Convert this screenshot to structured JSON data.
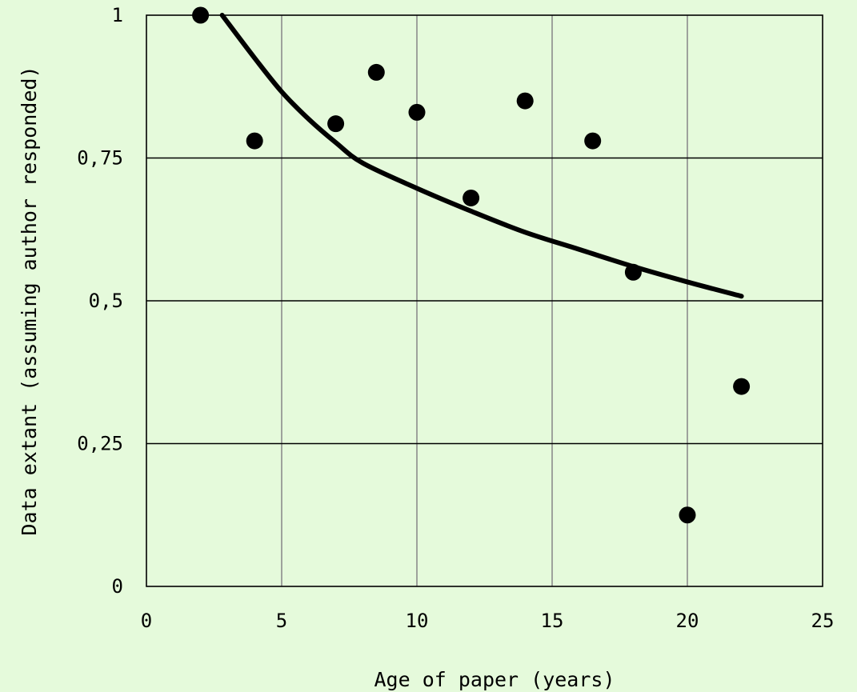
{
  "chart_data": {
    "type": "scatter",
    "title": "",
    "xlabel": "Age of paper (years)",
    "ylabel": "Data extant (assuming author responded)",
    "xlim": [
      0,
      25
    ],
    "ylim": [
      0,
      1
    ],
    "x_ticks": [
      0,
      5,
      10,
      15,
      20,
      25
    ],
    "x_tick_labels": [
      "0",
      "5",
      "10",
      "15",
      "20",
      "25"
    ],
    "y_ticks": [
      0,
      0.25,
      0.5,
      0.75,
      1
    ],
    "y_tick_labels": [
      "0",
      "0,25",
      "0,5",
      "0,75",
      "1"
    ],
    "grid": true,
    "legend": "none",
    "series": [
      {
        "points": [
          {
            "x": 2,
            "y": 1.0
          },
          {
            "x": 4,
            "y": 0.78
          },
          {
            "x": 7,
            "y": 0.81
          },
          {
            "x": 8.5,
            "y": 0.9
          },
          {
            "x": 10,
            "y": 0.83
          },
          {
            "x": 12,
            "y": 0.68
          },
          {
            "x": 14,
            "y": 0.85
          },
          {
            "x": 16.5,
            "y": 0.78
          },
          {
            "x": 18,
            "y": 0.55
          },
          {
            "x": 20,
            "y": 0.125
          },
          {
            "x": 22,
            "y": 0.35
          }
        ],
        "color": "#000000"
      }
    ],
    "trendline": {
      "type": "logarithmic",
      "x_range": [
        2.8,
        22
      ],
      "points": [
        {
          "x": 2.8,
          "y": 1.0
        },
        {
          "x": 4,
          "y": 0.925
        },
        {
          "x": 5,
          "y": 0.866
        },
        {
          "x": 6,
          "y": 0.818
        },
        {
          "x": 7,
          "y": 0.777
        },
        {
          "x": 8,
          "y": 0.741
        },
        {
          "x": 10,
          "y": 0.697
        },
        {
          "x": 12,
          "y": 0.657
        },
        {
          "x": 14,
          "y": 0.62
        },
        {
          "x": 16,
          "y": 0.59
        },
        {
          "x": 18,
          "y": 0.56
        },
        {
          "x": 20,
          "y": 0.533
        },
        {
          "x": 22,
          "y": 0.508
        }
      ],
      "color": "#000000"
    },
    "colors": {
      "background": "#e5fadb",
      "grid_horizontal": "#000000",
      "grid_vertical": "#8c8c8c",
      "marker": "#000000"
    }
  }
}
